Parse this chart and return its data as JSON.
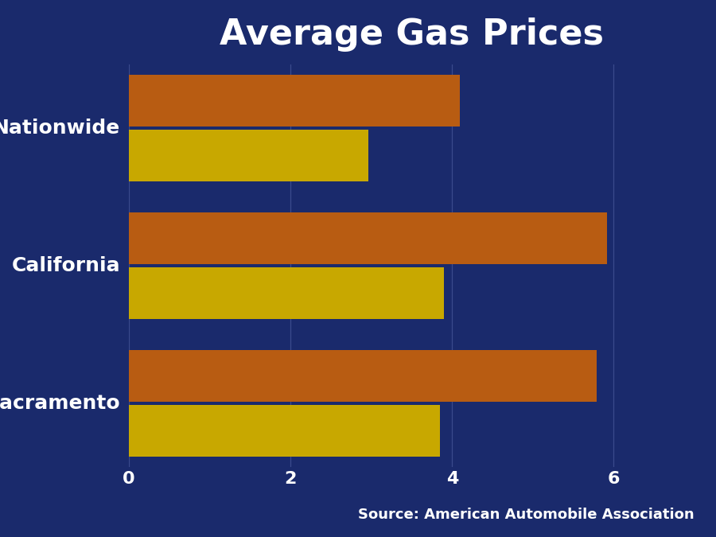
{
  "title": "Average Gas Prices",
  "categories": [
    "Sacramento",
    "California",
    "Nationwide"
  ],
  "today_values": [
    5.79,
    5.92,
    4.1
  ],
  "year_ago_values": [
    3.85,
    3.9,
    2.96
  ],
  "today_color": "#B85C12",
  "year_ago_color": "#C8A800",
  "background_color": "#1A2A6C",
  "text_color": "#FFFFFF",
  "source_text": "Source: American Automobile Association",
  "xlim": [
    0,
    7
  ],
  "xticks": [
    0,
    2,
    4,
    6
  ],
  "title_fontsize": 32,
  "label_fontsize": 18,
  "tick_fontsize": 16,
  "source_fontsize": 13
}
